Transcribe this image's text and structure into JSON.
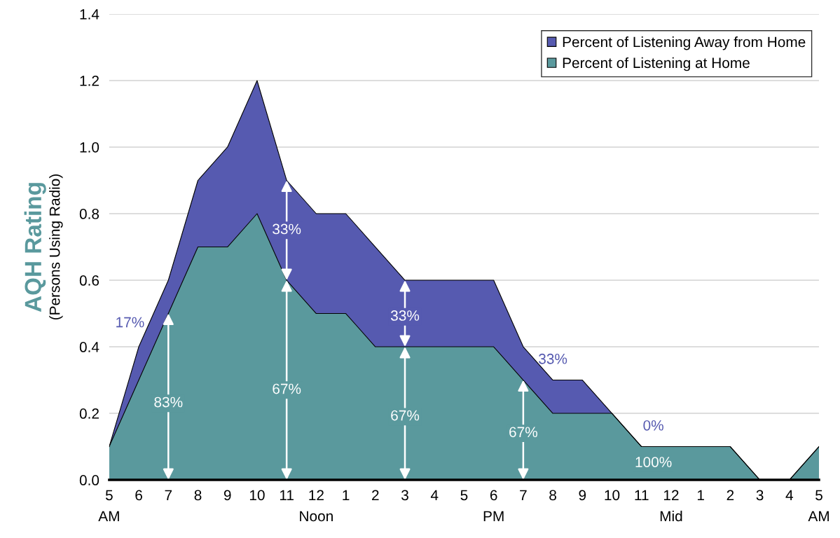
{
  "chart_data": {
    "type": "area",
    "stacked": true,
    "categories": [
      "5\nAM",
      "6",
      "7",
      "8",
      "9",
      "10",
      "11",
      "12\nNoon",
      "1",
      "2",
      "3",
      "4",
      "5",
      "6\nPM",
      "7",
      "8",
      "9",
      "10",
      "11",
      "12\nMid",
      "1",
      "2",
      "3",
      "4",
      "5\nAM"
    ],
    "series": [
      {
        "name": "Percent of Listening at Home",
        "color": "#5a999d",
        "values": [
          0.1,
          0.3,
          0.5,
          0.7,
          0.7,
          0.8,
          0.6,
          0.5,
          0.5,
          0.4,
          0.4,
          0.4,
          0.4,
          0.4,
          0.3,
          0.2,
          0.2,
          0.2,
          0.1,
          0.1,
          0.1,
          0.1,
          0.0,
          0.0,
          0.1
        ]
      },
      {
        "name": "Percent of Listening Away from Home",
        "color": "#565ab0",
        "values": [
          0.0,
          0.1,
          0.1,
          0.2,
          0.3,
          0.4,
          0.3,
          0.3,
          0.3,
          0.3,
          0.2,
          0.2,
          0.2,
          0.2,
          0.1,
          0.1,
          0.1,
          0.0,
          0.0,
          0.0,
          0.0,
          0.0,
          0.0,
          0.0,
          0.0
        ]
      }
    ],
    "ylabel": "AQH Rating",
    "annotations": [
      "(Persons Using Radio)",
      "17%",
      "83%",
      "33%",
      "67%",
      "33%",
      "67%",
      "67%",
      "33%",
      "0%",
      "100%"
    ],
    "ylim": [
      0,
      1.4
    ],
    "yticks": [
      {
        "value": 0,
        "label": "0.0"
      },
      {
        "value": 0.2,
        "label": "0.2"
      },
      {
        "value": 0.4,
        "label": "0.4"
      },
      {
        "value": 0.6,
        "label": "0.6"
      },
      {
        "value": 0.8,
        "label": "0.8"
      },
      {
        "value": 1.0,
        "label": "1.0"
      },
      {
        "value": 1.2,
        "label": "1.2"
      },
      {
        "value": 1.4,
        "label": "1.4"
      }
    ],
    "grid": "y",
    "legend": "top right"
  }
}
